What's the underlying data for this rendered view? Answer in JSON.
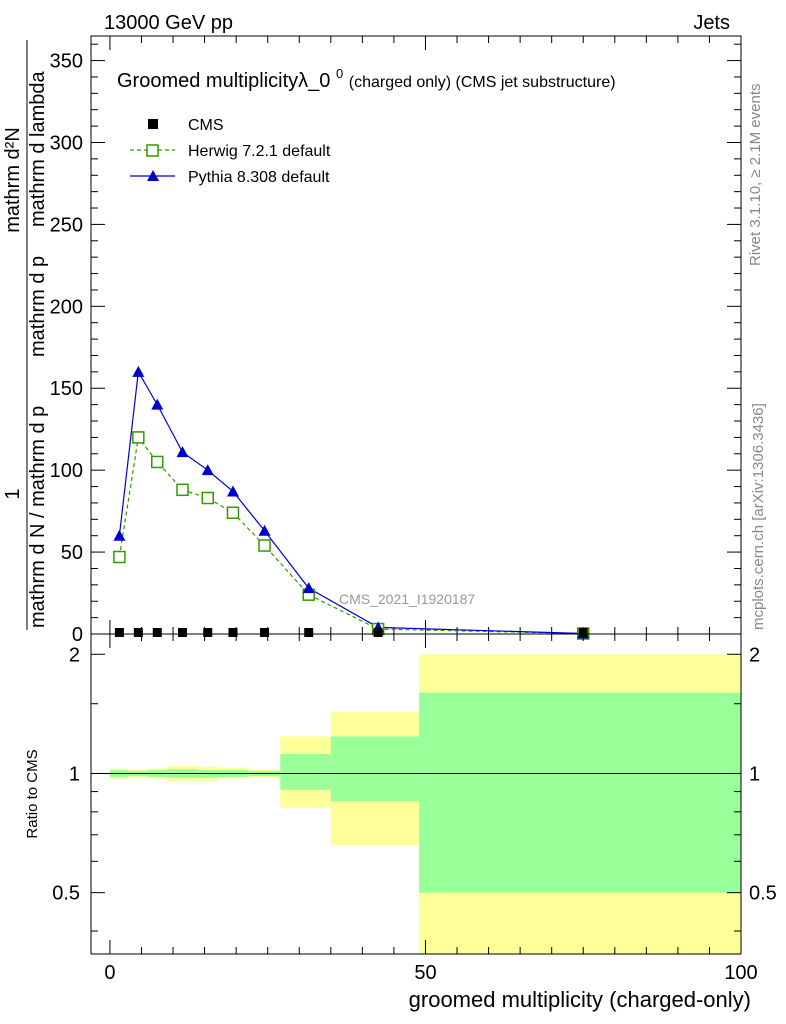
{
  "header": {
    "left": "13000 GeV pp",
    "right": "Jets"
  },
  "side_labels": {
    "rivet": "Rivet 3.1.10, ≥ 2.1M events",
    "mcplots": "mcplots.cern.ch [arXiv:1306.3436]"
  },
  "watermark": "CMS_2021_I1920187",
  "chart_data": [
    {
      "type": "line",
      "title_main": "Groomed multiplicityλ_0",
      "title_sup": "0",
      "title_rest": " (charged only) (CMS jet substructure)",
      "ylabel": {
        "top": "1",
        "num": "mathrm d N / mathrm d p_mathrm d lambda",
        "den": "mathrm d N / mathrm d p_mathrm d p_mathrm d lambda",
        "display_num": "mathrm d²N",
        "display_den_line1": "mathrm d N / mathrm d p",
        "display_den_line2": "mathrm d p",
        "display_den_line3": "mathrm d lambda"
      },
      "xlim": [
        -3,
        100
      ],
      "ylim": [
        0,
        365
      ],
      "y_ticks": [
        0,
        50,
        100,
        150,
        200,
        250,
        300,
        350
      ],
      "y_tick_labels": [
        "0",
        "50",
        "100",
        "150",
        "200",
        "250",
        "300",
        "350"
      ],
      "legend_position": "top-left",
      "series": [
        {
          "name": "CMS",
          "marker": "filled-square",
          "color": "#000000",
          "x": [
            1.5,
            4.5,
            7.5,
            11.5,
            15.5,
            19.5,
            24.5,
            31.5,
            42.5,
            75
          ],
          "y": [
            0,
            0,
            0,
            0,
            0,
            0,
            0,
            0,
            0,
            0
          ]
        },
        {
          "name": "Herwig 7.2.1 default",
          "marker": "open-square",
          "line": "dashed",
          "color": "#339900",
          "x": [
            1.5,
            4.5,
            7.5,
            11.5,
            15.5,
            19.5,
            24.5,
            31.5,
            42.5,
            75
          ],
          "y": [
            47,
            120,
            105,
            88,
            83,
            74,
            54,
            24,
            3,
            0.3
          ]
        },
        {
          "name": "Pythia 8.308 default",
          "marker": "filled-triangle",
          "line": "solid",
          "color": "#0000cc",
          "x": [
            1.5,
            4.5,
            7.5,
            11.5,
            15.5,
            19.5,
            24.5,
            31.5,
            42.5,
            75
          ],
          "y": [
            60,
            160,
            140,
            111,
            100,
            87,
            63,
            28,
            4,
            0.3
          ]
        }
      ]
    },
    {
      "type": "area",
      "ylabel": "Ratio to CMS",
      "xlabel": "groomed multiplicity (charged-only)",
      "xlim": [
        -3,
        100
      ],
      "ylim": [
        0.35,
        2.25
      ],
      "x_ticks": [
        0,
        50,
        100
      ],
      "x_tick_labels": [
        "0",
        "50",
        "100"
      ],
      "y_ticks": [
        0.5,
        1,
        2
      ],
      "y_tick_labels": [
        "0.5",
        "1",
        "2"
      ],
      "reference_line": 1,
      "bands": [
        {
          "x0": 0,
          "x1": 3,
          "outer": [
            0.97,
            1.03
          ],
          "inner": [
            0.98,
            1.02
          ]
        },
        {
          "x0": 3,
          "x1": 6,
          "outer": [
            0.975,
            1.025
          ],
          "inner": [
            0.985,
            1.015
          ]
        },
        {
          "x0": 6,
          "x1": 9,
          "outer": [
            0.97,
            1.03
          ],
          "inner": [
            0.98,
            1.02
          ]
        },
        {
          "x0": 9,
          "x1": 14,
          "outer": [
            0.955,
            1.045
          ],
          "inner": [
            0.975,
            1.025
          ]
        },
        {
          "x0": 14,
          "x1": 17,
          "outer": [
            0.955,
            1.04
          ],
          "inner": [
            0.975,
            1.02
          ]
        },
        {
          "x0": 17,
          "x1": 22,
          "outer": [
            0.97,
            1.035
          ],
          "inner": [
            0.98,
            1.02
          ]
        },
        {
          "x0": 22,
          "x1": 27,
          "outer": [
            0.975,
            1.025
          ],
          "inner": [
            0.985,
            1.015
          ]
        },
        {
          "x0": 27,
          "x1": 35,
          "outer": [
            0.82,
            1.24
          ],
          "inner": [
            0.91,
            1.12
          ]
        },
        {
          "x0": 35,
          "x1": 49,
          "outer": [
            0.66,
            1.43
          ],
          "inner": [
            0.85,
            1.24
          ]
        },
        {
          "x0": 49,
          "x1": 100,
          "outer": [
            0.35,
            2.0
          ],
          "inner": [
            0.5,
            1.6
          ]
        }
      ]
    }
  ],
  "colors": {
    "band_outer": "#ffff99",
    "band_inner": "#99ff99",
    "herwig": "#339900",
    "pythia": "#0000cc",
    "cms": "#000000",
    "watermark": "#999999",
    "side_label": "#888888"
  }
}
